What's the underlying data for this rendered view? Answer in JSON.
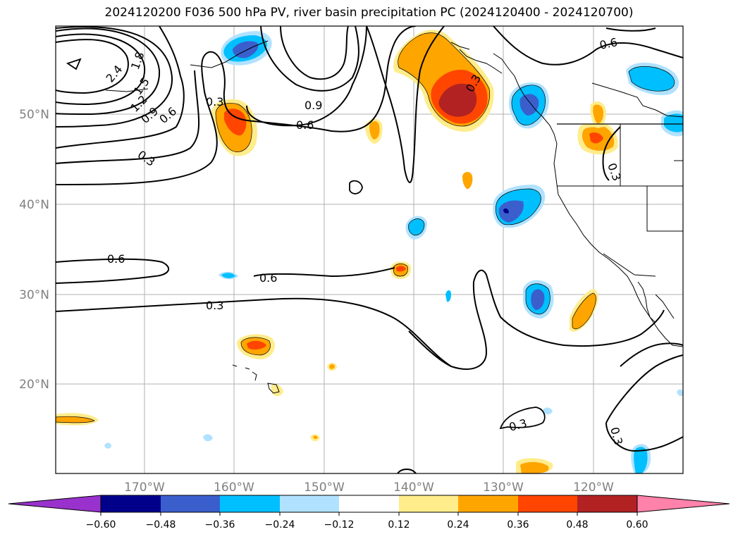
{
  "title": "2024120200 F036 500 hPa PV, river basin precipitation PC (2024120400 - 2024120700)",
  "map": {
    "lon_ticks": [
      "170°W",
      "160°W",
      "150°W",
      "140°W",
      "130°W",
      "120°W"
    ],
    "lat_ticks": [
      "50°N",
      "40°N",
      "30°N",
      "20°N"
    ],
    "contour_labels": [
      "2.4",
      "1.8",
      "1.5",
      "1.2",
      "0.9",
      "0.6",
      "0.3",
      "0.3",
      "0.9",
      "0.6",
      "0.6",
      "0.6",
      "0.3",
      "0.6",
      "0.3",
      "0.3",
      "0.3",
      "0.3"
    ]
  },
  "colorbar": {
    "ticks": [
      "−0.60",
      "−0.48",
      "−0.36",
      "−0.24",
      "−0.12",
      "0.12",
      "0.24",
      "0.36",
      "0.48",
      "0.60"
    ],
    "colors": [
      "#9932cc",
      "#00008b",
      "#3a5fcd",
      "#00bfff",
      "#b0e2ff",
      "#ffffff",
      "#ffec8b",
      "#ffa500",
      "#ff4500",
      "#b22222",
      "#ff82ab"
    ]
  }
}
